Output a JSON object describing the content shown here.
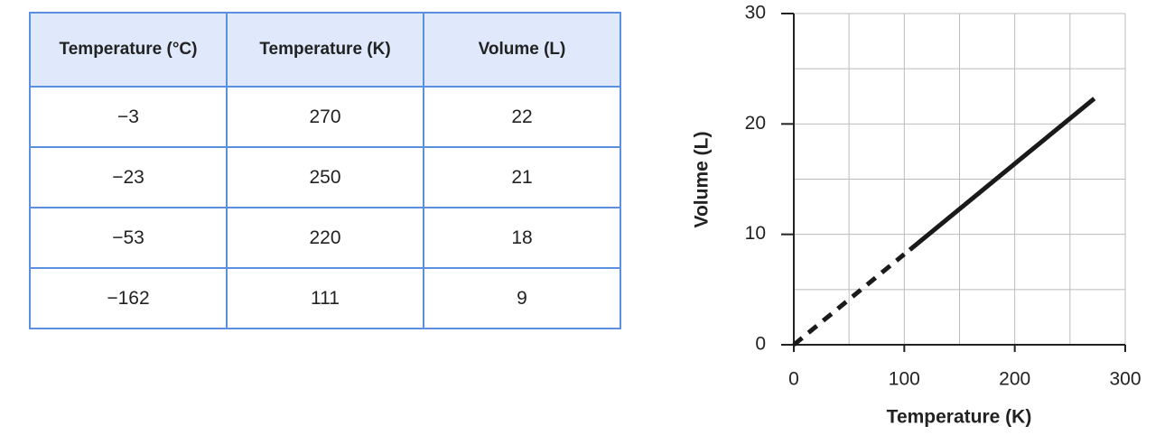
{
  "table": {
    "header": [
      "Temperature (°C)",
      "Temperature (K)",
      "Volume (L)"
    ],
    "rows": [
      [
        "−3",
        "270",
        "22"
      ],
      [
        "−23",
        "250",
        "21"
      ],
      [
        "−53",
        "220",
        "18"
      ],
      [
        "−162",
        "111",
        "9"
      ]
    ]
  },
  "chart_data": {
    "type": "line",
    "xlabel": "Temperature (K)",
    "ylabel": "Volume (L)",
    "xlim": [
      0,
      300
    ],
    "xticks": [
      0,
      100,
      200,
      300
    ],
    "xminor": [
      50,
      150,
      250
    ],
    "ylim": [
      0,
      30
    ],
    "yticks": [
      0,
      10,
      20,
      30
    ],
    "yminor": [
      5,
      15,
      25
    ],
    "grid": true,
    "series": [
      {
        "color": "#1a1a1a",
        "dashed": false,
        "x": [
          105,
          272
        ],
        "values": [
          8.6,
          22.3
        ]
      },
      {
        "color": "#1a1a1a",
        "dashed": true,
        "x": [
          0,
          100
        ],
        "values": [
          0,
          8.2
        ]
      }
    ]
  }
}
